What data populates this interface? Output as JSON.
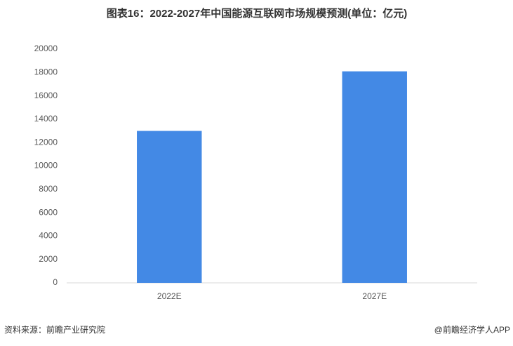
{
  "chart_data": {
    "type": "bar",
    "title": "图表16：2022-2027年中国能源互联网市场规模预测(单位：亿元)",
    "categories": [
      "2022E",
      "2027E"
    ],
    "values": [
      13000,
      18100
    ],
    "color": "#4389e5",
    "ylim": [
      0,
      20000
    ],
    "yticks": [
      0,
      2000,
      4000,
      6000,
      8000,
      10000,
      12000,
      14000,
      16000,
      18000,
      20000
    ],
    "grid": false,
    "source": "资料来源：前瞻产业研究院",
    "credit": "@前瞻经济学人APP"
  }
}
